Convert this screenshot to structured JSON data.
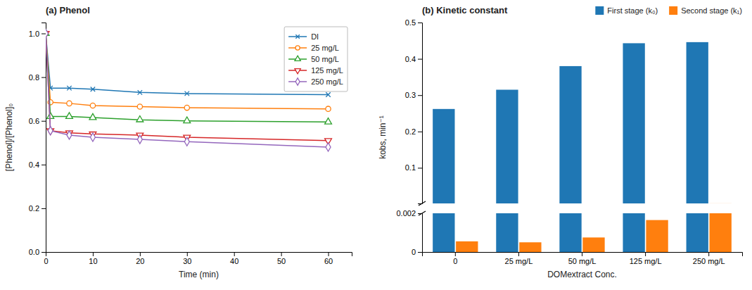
{
  "chart_data": [
    {
      "type": "line",
      "title": "(a) Phenol",
      "xlabel": "Time (min)",
      "ylabel": "[Phenol]/[Phenol]₀",
      "x": [
        0,
        1,
        5,
        10,
        20,
        30,
        60
      ],
      "xlim": [
        0,
        65
      ],
      "xticks": [
        0,
        10,
        20,
        30,
        40,
        50,
        60
      ],
      "ylim": [
        0,
        1.05
      ],
      "yticks": [
        {
          "value": 0,
          "label": "0.0"
        },
        0.2,
        0.4,
        0.6,
        0.8,
        {
          "value": 1.0,
          "label": "1.0"
        }
      ],
      "grid": false,
      "legend": "upper-right",
      "series": [
        {
          "name": "DI",
          "marker": "x",
          "values": [
            1.0,
            0.75,
            0.75,
            0.745,
            0.73,
            0.725,
            0.72
          ]
        },
        {
          "name": "25 mg/L",
          "marker": "circle",
          "values": [
            1.0,
            0.685,
            0.68,
            0.67,
            0.665,
            0.66,
            0.655
          ]
        },
        {
          "name": "50 mg/L",
          "marker": "triangle-up",
          "values": [
            1.0,
            0.62,
            0.62,
            0.615,
            0.605,
            0.6,
            0.595
          ]
        },
        {
          "name": "125 mg/L",
          "marker": "triangle-down",
          "values": [
            1.0,
            0.555,
            0.545,
            0.54,
            0.535,
            0.525,
            0.51
          ]
        },
        {
          "name": "250 mg/L",
          "marker": "diamond",
          "values": [
            1.0,
            0.555,
            0.535,
            0.525,
            0.515,
            0.505,
            0.48
          ]
        }
      ]
    },
    {
      "type": "bar",
      "title": "(b) Kinetic constant",
      "xlabel": "DOMextract Conc.",
      "ylabel": "kobs, min⁻¹",
      "categories": [
        "0",
        "25 mg/L",
        "50 mg/L",
        "125 mg/L",
        "250 mg/L"
      ],
      "ylim": [
        0,
        0.5
      ],
      "yticks": [
        0,
        0.002,
        0.1,
        0.2,
        0.3,
        0.4,
        0.5
      ],
      "grid": false,
      "legend": "upper-right",
      "series": [
        {
          "name": "First stage (k₀)",
          "values": [
            0.262,
            0.315,
            0.38,
            0.443,
            0.446
          ]
        },
        {
          "name": "Second stage (k₁)",
          "values": [
            0.00055,
            0.0005,
            0.00075,
            0.00165,
            0.00215
          ]
        }
      ]
    }
  ]
}
